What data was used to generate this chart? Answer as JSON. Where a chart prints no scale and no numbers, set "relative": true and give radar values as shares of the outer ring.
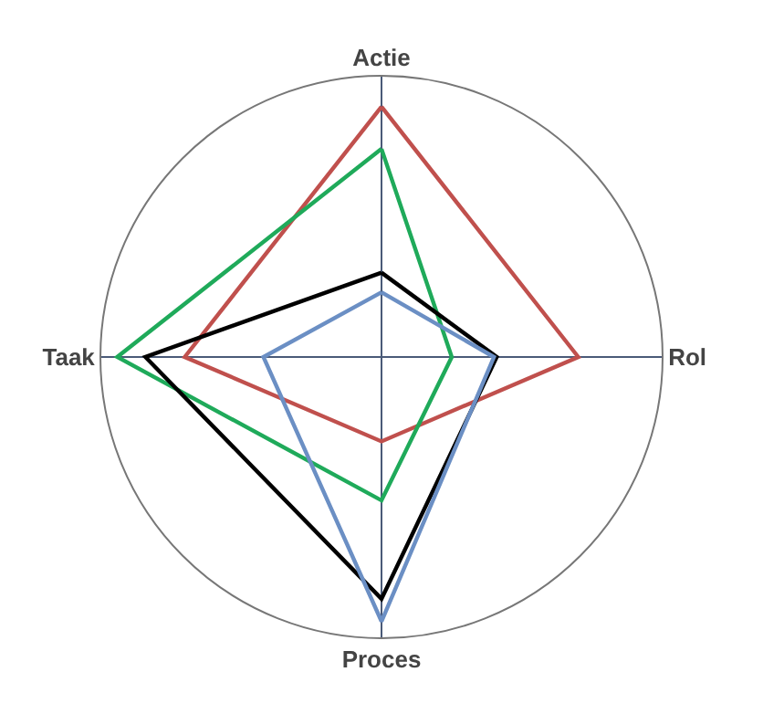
{
  "chart_data": {
    "type": "radar",
    "relative": true,
    "categories": [
      "Actie",
      "Rol",
      "Proces",
      "Taak"
    ],
    "series": [
      {
        "color": "#c0504d",
        "values": [
          0.89,
          0.7,
          0.3,
          0.7
        ]
      },
      {
        "color": "#1faa5a",
        "values": [
          0.74,
          0.25,
          0.51,
          0.94
        ]
      },
      {
        "color": "#000000",
        "values": [
          0.3,
          0.41,
          0.86,
          0.84
        ]
      },
      {
        "color": "#6b8fc4",
        "values": [
          0.23,
          0.4,
          0.94,
          0.42
        ]
      }
    ],
    "marker": "none"
  }
}
